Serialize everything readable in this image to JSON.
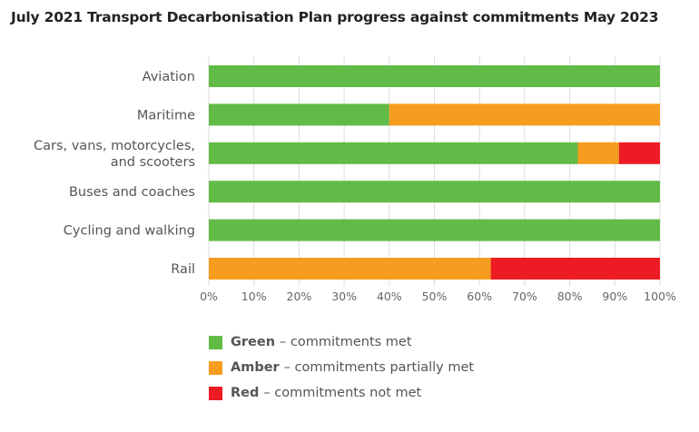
{
  "chart_data": {
    "type": "bar",
    "orientation": "horizontal",
    "stacked": true,
    "title": "July 2021 Transport Decarbonisation Plan progress against commitments May 2023",
    "categories": [
      "Aviation",
      "Maritime",
      "Cars, vans, motorcycles, and scooters",
      "Buses and coaches",
      "Cycling and walking",
      "Rail"
    ],
    "category_lines": [
      [
        "Aviation"
      ],
      [
        "Maritime"
      ],
      [
        "Cars, vans, motorcycles,",
        "and scooters"
      ],
      [
        "Buses and coaches"
      ],
      [
        "Cycling and walking"
      ],
      [
        "Rail"
      ]
    ],
    "series": [
      {
        "name": "Green",
        "values": [
          100,
          40,
          81.8,
          100,
          100,
          0
        ],
        "color": "#62bb46"
      },
      {
        "name": "Amber",
        "values": [
          0,
          60,
          9.1,
          0,
          0,
          62.5
        ],
        "color": "#f69d1f"
      },
      {
        "name": "Red",
        "values": [
          0,
          0,
          9.1,
          0,
          0,
          37.5
        ],
        "color": "#ed1c24"
      }
    ],
    "xlim": [
      0,
      100
    ],
    "x_ticks": [
      "0%",
      "10%",
      "20%",
      "30%",
      "40%",
      "50%",
      "60%",
      "70%",
      "80%",
      "90%",
      "100%"
    ],
    "grid": true,
    "legend_position": "bottom"
  },
  "legend": [
    {
      "name": "Green",
      "desc": "– commitments met",
      "color": "#62bb46"
    },
    {
      "name": "Amber",
      "desc": "– commitments partially met",
      "color": "#f69d1f"
    },
    {
      "name": "Red",
      "desc": "– commitments not met",
      "color": "#ed1c24"
    }
  ]
}
